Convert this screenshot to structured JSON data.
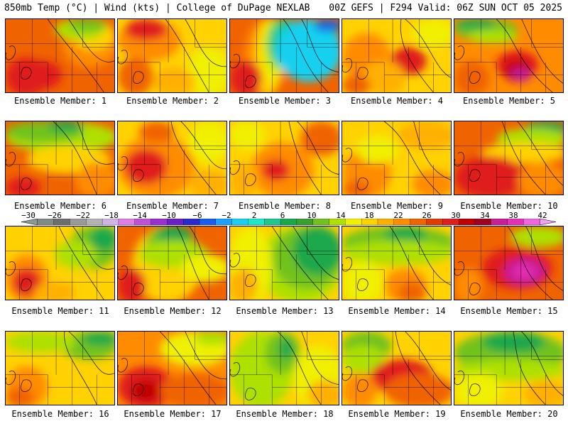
{
  "header": {
    "left_title": "850mb Temp (°C) | Wind (kts) | College of DuPage NEXLAB",
    "right_title": "00Z GEFS | F294 Valid: 06Z SUN OCT 05 2025"
  },
  "members": [
    {
      "label": "Ensemble Member: 1"
    },
    {
      "label": "Ensemble Member: 2"
    },
    {
      "label": "Ensemble Member: 3"
    },
    {
      "label": "Ensemble Member: 4"
    },
    {
      "label": "Ensemble Member: 5"
    },
    {
      "label": "Ensemble Member: 6"
    },
    {
      "label": "Ensemble Member: 7"
    },
    {
      "label": "Ensemble Member: 8"
    },
    {
      "label": "Ensemble Member: 9"
    },
    {
      "label": "Ensemble Member: 10"
    },
    {
      "label": "Ensemble Member: 11"
    },
    {
      "label": "Ensemble Member: 12"
    },
    {
      "label": "Ensemble Member: 13"
    },
    {
      "label": "Ensemble Member: 14"
    },
    {
      "label": "Ensemble Member: 15"
    },
    {
      "label": "Ensemble Member: 16"
    },
    {
      "label": "Ensemble Member: 17"
    },
    {
      "label": "Ensemble Member: 18"
    },
    {
      "label": "Ensemble Member: 19"
    },
    {
      "label": "Ensemble Member: 20"
    }
  ],
  "colorbar": {
    "ticks": [
      "−30",
      "−26",
      "−22",
      "−18",
      "−14",
      "−10",
      "−6",
      "−2",
      "2",
      "6",
      "10",
      "14",
      "18",
      "22",
      "26",
      "30",
      "34",
      "38",
      "42"
    ],
    "colors": [
      "#8a9a94",
      "#7f8a86",
      "#6e6e6e",
      "#9a9a9a",
      "#b4b4b4",
      "#d2b4e6",
      "#e07ee6",
      "#c050d8",
      "#9b30d0",
      "#6a20c8",
      "#2a2acc",
      "#1a5ef0",
      "#1ea0ff",
      "#19d0f0",
      "#1ee8c8",
      "#1cc88c",
      "#1aa84c",
      "#3aa030",
      "#72c21e",
      "#aee000",
      "#f0f000",
      "#ffd200",
      "#ffb000",
      "#ff8c00",
      "#f06400",
      "#e03c00",
      "#e01e1e",
      "#c00000",
      "#a00020",
      "#c81e96",
      "#e62fb4",
      "#f066e0",
      "#f6a0f0"
    ]
  }
}
